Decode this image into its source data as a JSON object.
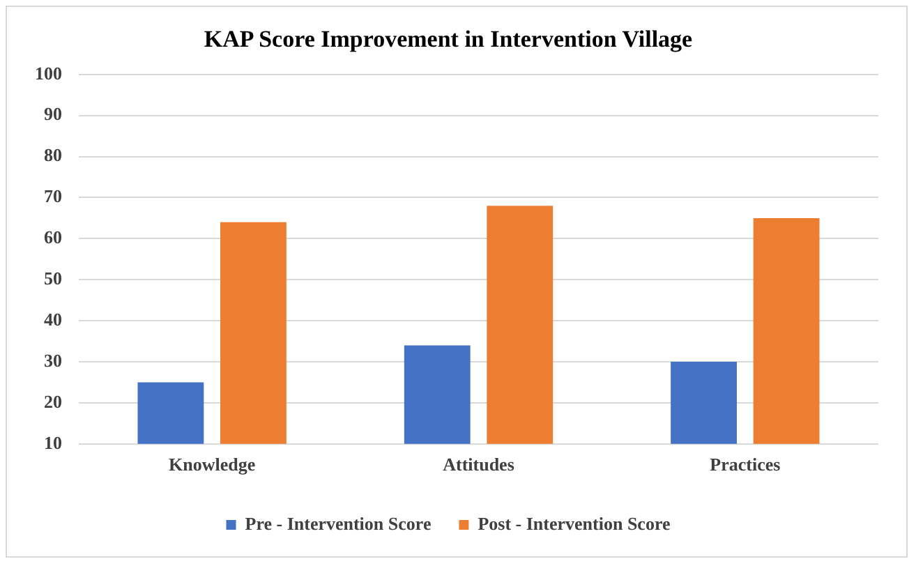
{
  "chart_data": {
    "type": "bar",
    "title": "KAP Score Improvement in Intervention Village",
    "categories": [
      "Knowledge",
      "Attitudes",
      "Practices"
    ],
    "series": [
      {
        "name": "Pre - Intervention Score",
        "color": "#4472c4",
        "values": [
          25,
          34,
          30
        ]
      },
      {
        "name": "Post - Intervention Score",
        "color": "#ed7d31",
        "values": [
          64,
          68,
          65
        ]
      }
    ],
    "ylim": [
      10,
      100
    ],
    "yticks": [
      10,
      20,
      30,
      40,
      50,
      60,
      70,
      80,
      90,
      100
    ],
    "grid": "y",
    "legend": "bottom"
  }
}
